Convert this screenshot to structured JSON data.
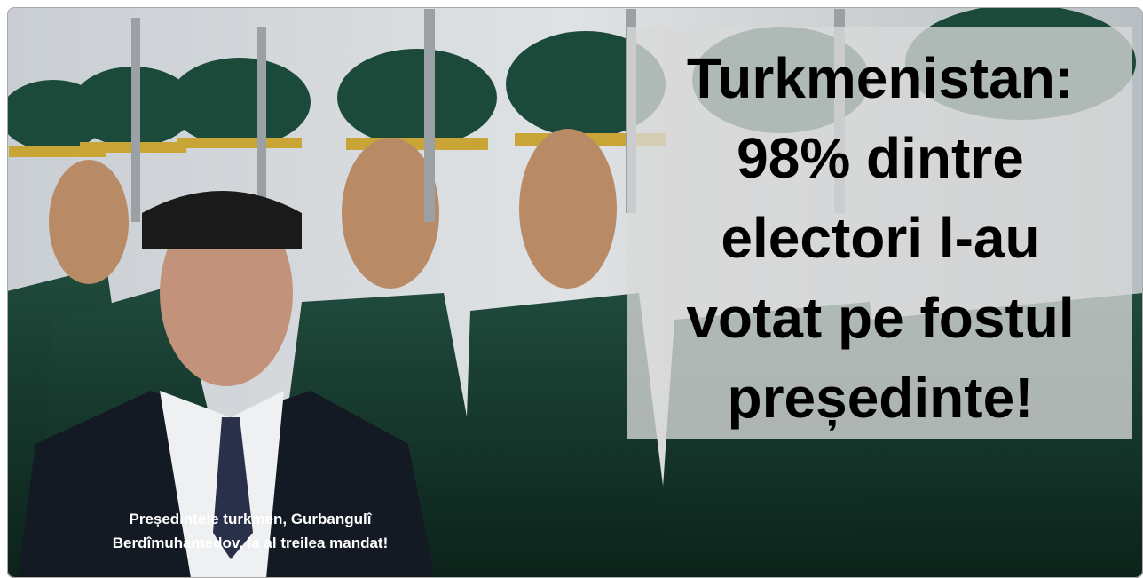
{
  "headline": {
    "lines": [
      "Turkmenistan:",
      "98% dintre",
      "electori l-au",
      "votat pe fostul",
      "președinte!"
    ]
  },
  "caption": {
    "lines": [
      "Președintele turkmen, Gurbangulî",
      "Berdîmuhamedov, la al treilea mandat!"
    ]
  }
}
